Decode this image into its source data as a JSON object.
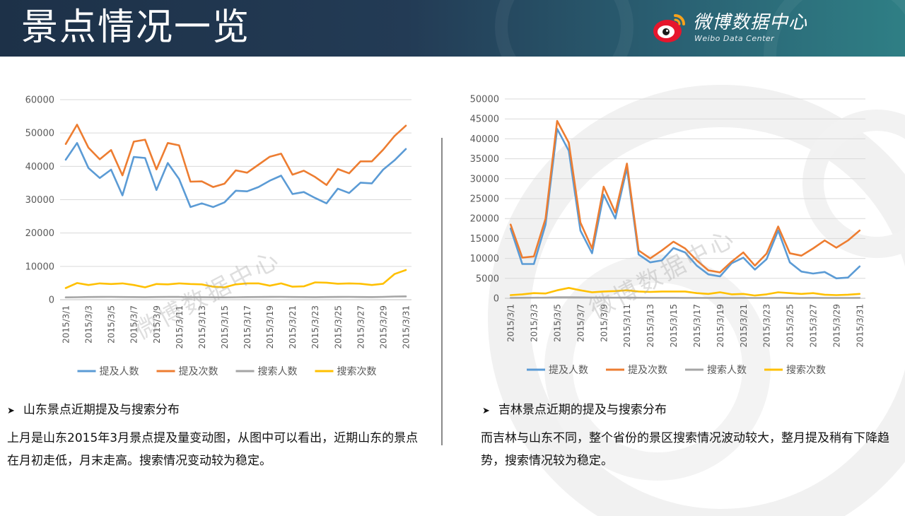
{
  "header": {
    "title": "景点情况一览",
    "brand": "微博数据中心",
    "brand_sub": "Weibo Data Center"
  },
  "watermark": "微博数据中心",
  "legend": [
    "提及人数",
    "提及次数",
    "搜索人数",
    "搜索次数"
  ],
  "colors": {
    "series": [
      "#5b9bd5",
      "#ed7d31",
      "#a5a5a5",
      "#ffc000"
    ]
  },
  "sections": {
    "left": {
      "title": "山东景点近期提及与搜索分布",
      "body": "上月是山东2015年3月景点提及量变动图，从图中可以看出，近期山东的景点在月初走低，月末走高。搜索情况变动较为稳定。"
    },
    "right": {
      "title": "吉林景点近期的提及与搜索分布",
      "body": "而吉林与山东不同，整个省份的景区搜索情况波动较大，整月提及稍有下降趋势，搜索情况较为稳定。"
    }
  },
  "chart_data": [
    {
      "type": "line",
      "x": [
        "2015/3/1",
        "2015/3/2",
        "2015/3/3",
        "2015/3/4",
        "2015/3/5",
        "2015/3/6",
        "2015/3/7",
        "2015/3/8",
        "2015/3/9",
        "2015/3/10",
        "2015/3/11",
        "2015/3/12",
        "2015/3/13",
        "2015/3/14",
        "2015/3/15",
        "2015/3/16",
        "2015/3/17",
        "2015/3/18",
        "2015/3/19",
        "2015/3/20",
        "2015/3/21",
        "2015/3/22",
        "2015/3/23",
        "2015/3/24",
        "2015/3/25",
        "2015/3/26",
        "2015/3/27",
        "2015/3/28",
        "2015/3/29",
        "2015/3/30",
        "2015/3/31"
      ],
      "xticks": [
        "2015/3/1",
        "2015/3/3",
        "2015/3/5",
        "2015/3/7",
        "2015/3/9",
        "2015/3/11",
        "2015/3/13",
        "2015/3/15",
        "2015/3/17",
        "2015/3/19",
        "2015/3/21",
        "2015/3/23",
        "2015/3/25",
        "2015/3/27",
        "2015/3/29",
        "2015/3/31"
      ],
      "yticks": [
        "0",
        "10000",
        "20000",
        "30000",
        "40000",
        "50000",
        "60000"
      ],
      "ylim": [
        0,
        60000
      ],
      "grid": true,
      "legend": "bottom",
      "series": [
        {
          "name": "提及人数",
          "values": [
            42000,
            47000,
            39500,
            36500,
            39000,
            31300,
            42800,
            42500,
            32900,
            41000,
            36200,
            27800,
            28900,
            27800,
            29200,
            32700,
            32500,
            33800,
            35700,
            37200,
            31700,
            32300,
            30500,
            28900,
            33300,
            32000,
            35100,
            34900,
            39000,
            41800,
            45200
          ]
        },
        {
          "name": "提及次数",
          "values": [
            46700,
            52500,
            45600,
            42100,
            44900,
            37300,
            47400,
            48000,
            39100,
            47000,
            46300,
            35400,
            35500,
            33800,
            34800,
            38800,
            38100,
            40500,
            42900,
            43800,
            37500,
            38700,
            36800,
            34400,
            39200,
            37900,
            41500,
            41500,
            45000,
            49100,
            52200
          ]
        },
        {
          "name": "搜索人数",
          "values": [
            700,
            750,
            800,
            820,
            850,
            800,
            780,
            760,
            800,
            830,
            820,
            740,
            760,
            720,
            700,
            750,
            780,
            800,
            820,
            850,
            800,
            780,
            760,
            800,
            820,
            840,
            800,
            780,
            850,
            950,
            1000
          ]
        },
        {
          "name": "搜索次数",
          "values": [
            3500,
            5000,
            4400,
            4900,
            4700,
            4900,
            4400,
            3700,
            4700,
            4600,
            4900,
            4700,
            4600,
            3900,
            3700,
            4600,
            4900,
            4900,
            4200,
            4900,
            3900,
            4000,
            5200,
            5100,
            4800,
            4900,
            4800,
            4400,
            4800,
            7700,
            8900
          ]
        }
      ]
    },
    {
      "type": "line",
      "x": [
        "2015/3/1",
        "2015/3/2",
        "2015/3/3",
        "2015/3/4",
        "2015/3/5",
        "2015/3/6",
        "2015/3/7",
        "2015/3/8",
        "2015/3/9",
        "2015/3/10",
        "2015/3/11",
        "2015/3/12",
        "2015/3/13",
        "2015/3/14",
        "2015/3/15",
        "2015/3/16",
        "2015/3/17",
        "2015/3/18",
        "2015/3/19",
        "2015/3/20",
        "2015/3/21",
        "2015/3/22",
        "2015/3/23",
        "2015/3/24",
        "2015/3/25",
        "2015/3/26",
        "2015/3/27",
        "2015/3/28",
        "2015/3/29",
        "2015/3/30",
        "2015/3/31"
      ],
      "xticks": [
        "2015/3/1",
        "2015/3/3",
        "2015/3/5",
        "2015/3/7",
        "2015/3/9",
        "2015/3/11",
        "2015/3/13",
        "2015/3/15",
        "2015/3/17",
        "2015/3/19",
        "2015/3/21",
        "2015/3/23",
        "2015/3/25",
        "2015/3/27",
        "2015/3/29",
        "2015/3/31"
      ],
      "yticks": [
        "0",
        "5000",
        "10000",
        "15000",
        "20000",
        "25000",
        "30000",
        "35000",
        "40000",
        "45000",
        "50000"
      ],
      "ylim": [
        0,
        50000
      ],
      "grid": true,
      "legend": "bottom",
      "series": [
        {
          "name": "提及人数",
          "values": [
            17500,
            8600,
            8600,
            18500,
            42500,
            37000,
            17000,
            11300,
            26000,
            20000,
            32700,
            11000,
            9000,
            9500,
            12600,
            11500,
            8200,
            6000,
            5500,
            8800,
            10200,
            7200,
            9800,
            17000,
            9000,
            6700,
            6200,
            6600,
            5000,
            5200,
            8000
          ]
        },
        {
          "name": "提及次数",
          "values": [
            18500,
            10200,
            10500,
            20000,
            44500,
            39000,
            19000,
            12500,
            28000,
            21500,
            33800,
            12000,
            10000,
            12000,
            14200,
            12500,
            9500,
            7000,
            6500,
            9200,
            11500,
            8200,
            11200,
            18000,
            11300,
            10700,
            12500,
            14500,
            12700,
            14500,
            17000
          ]
        },
        {
          "name": "搜索人数",
          "values": [
            100,
            120,
            150,
            180,
            250,
            260,
            230,
            200,
            180,
            170,
            200,
            150,
            130,
            120,
            120,
            110,
            100,
            90,
            100,
            90,
            90,
            80,
            90,
            110,
            100,
            90,
            100,
            90,
            80,
            80,
            100
          ]
        },
        {
          "name": "搜索次数",
          "values": [
            800,
            1000,
            1300,
            1200,
            2000,
            2600,
            2000,
            1500,
            1700,
            1800,
            2000,
            1700,
            1600,
            1700,
            1700,
            1700,
            1300,
            1100,
            1500,
            1000,
            1100,
            700,
            1000,
            1500,
            1300,
            1100,
            1300,
            900,
            800,
            900,
            1100
          ]
        }
      ]
    }
  ]
}
